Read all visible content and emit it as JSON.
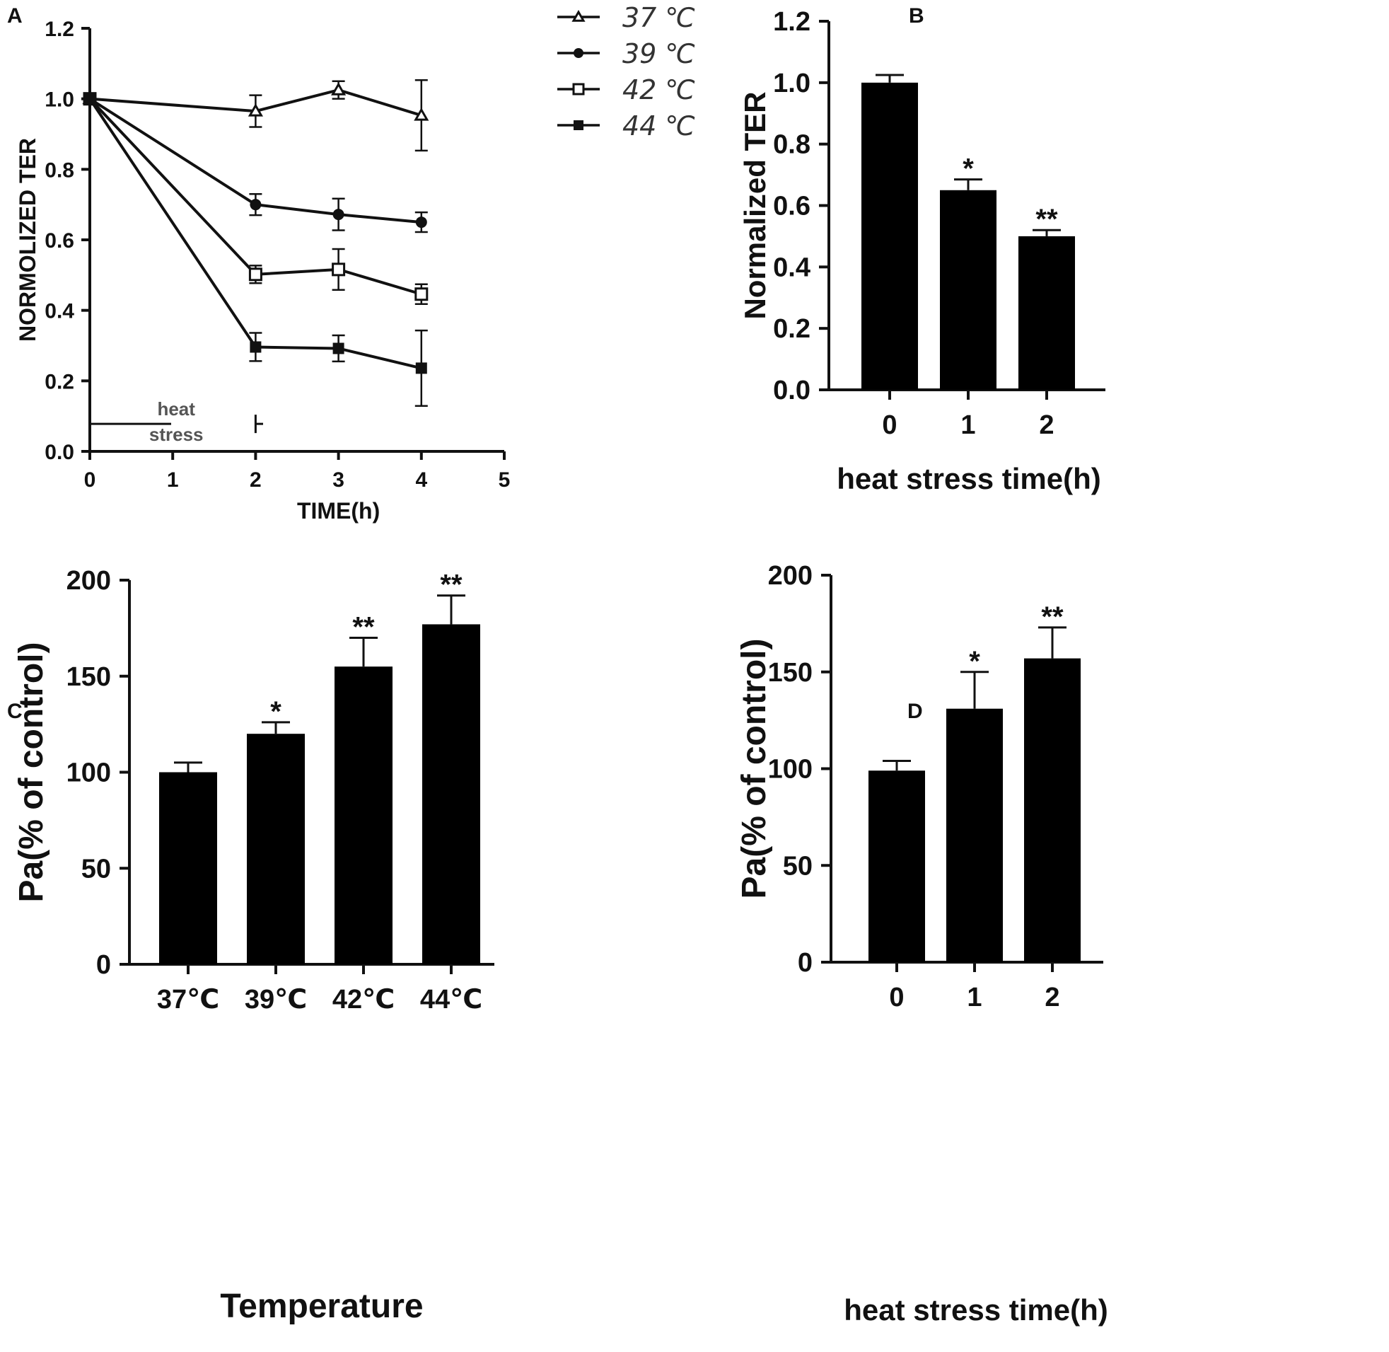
{
  "chart_data": [
    {
      "panel": "A",
      "type": "line",
      "title": "",
      "xlabel": "TIME(h)",
      "ylabel": "NORMOLIZED TER",
      "xlim": [
        0,
        5
      ],
      "ylim": [
        0,
        1.2
      ],
      "xticks": [
        "0",
        "1",
        "2",
        "3",
        "4",
        "5"
      ],
      "yticks": [
        "0.0",
        "0.2",
        "0.4",
        "0.6",
        "0.8",
        "1.0",
        "1.2"
      ],
      "x": [
        0,
        2,
        3,
        4
      ],
      "series": [
        {
          "name": "37 ℃",
          "marker": "open-triangle",
          "values": [
            1.0,
            0.965,
            1.025,
            0.953
          ],
          "errors": [
            0,
            0.045,
            0.025,
            0.1
          ]
        },
        {
          "name": "39 ℃",
          "marker": "filled-circle",
          "values": [
            1.0,
            0.7,
            0.672,
            0.65
          ],
          "errors": [
            0,
            0.03,
            0.045,
            0.028
          ]
        },
        {
          "name": "42 ℃",
          "marker": "open-square",
          "values": [
            1.0,
            0.502,
            0.516,
            0.446
          ],
          "errors": [
            0,
            0.025,
            0.058,
            0.028
          ]
        },
        {
          "name": "44 ℃",
          "marker": "filled-square",
          "values": [
            1.0,
            0.296,
            0.292,
            0.236
          ],
          "errors": [
            0,
            0.04,
            0.037,
            0.107
          ]
        }
      ],
      "annotation": {
        "text_line1": "heat",
        "text_line2": "stress",
        "x_start": 0,
        "x_end": 2,
        "y": 0.078
      }
    },
    {
      "panel": "B",
      "type": "bar",
      "title": "",
      "xlabel": "heat stress time(h)",
      "ylabel": "Normalized TER",
      "ylim": [
        0,
        1.2
      ],
      "yticks": [
        "0.0",
        "0.2",
        "0.4",
        "0.6",
        "0.8",
        "1.0",
        "1.2"
      ],
      "categories": [
        "0",
        "1",
        "2"
      ],
      "values": [
        1.0,
        0.65,
        0.5
      ],
      "errors": [
        0.025,
        0.035,
        0.02
      ],
      "significance": [
        "",
        "*",
        "**"
      ]
    },
    {
      "panel": "C",
      "type": "bar",
      "title": "",
      "xlabel": "Temperature",
      "ylabel": "Pa(% of control)",
      "ylim": [
        0,
        200
      ],
      "yticks": [
        "0",
        "50",
        "100",
        "150",
        "200"
      ],
      "categories": [
        "37℃",
        "39℃",
        "42℃",
        "44℃"
      ],
      "values": [
        100,
        120,
        155,
        177
      ],
      "errors": [
        5,
        6,
        15,
        15
      ],
      "significance": [
        "",
        "*",
        "**",
        "**"
      ]
    },
    {
      "panel": "D",
      "type": "bar",
      "title": "",
      "xlabel": "heat stress time(h)",
      "ylabel": "Pa(% of control)",
      "ylim": [
        0,
        200
      ],
      "yticks": [
        "0",
        "50",
        "100",
        "150",
        "200"
      ],
      "categories": [
        "0",
        "1",
        "2"
      ],
      "values": [
        99,
        131,
        157
      ],
      "errors": [
        5,
        19,
        16
      ],
      "significance": [
        "",
        "*",
        "**"
      ]
    }
  ],
  "colors": {
    "ink": "#111111",
    "bar": "#000000",
    "note": "#555555"
  }
}
